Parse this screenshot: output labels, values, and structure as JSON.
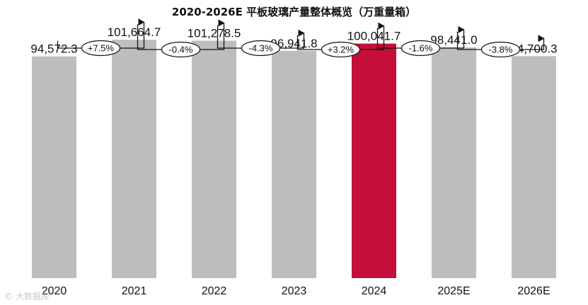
{
  "title": "2020-2026E 平板玻璃产量整体概览（万重量箱）",
  "source_note": "© 大数据库",
  "colors": {
    "bar_default": "#bdbdbd",
    "bar_highlight": "#c40f3b",
    "text": "#111111"
  },
  "chart_data": {
    "type": "bar",
    "title": "2020-2026E 平板玻璃产量整体概览（万重量箱）",
    "xlabel": "",
    "ylabel": "",
    "categories": [
      "2020",
      "2021",
      "2022",
      "2023",
      "2024",
      "2025E",
      "2026E"
    ],
    "values": [
      94572.3,
      101664.7,
      101278.5,
      96941.8,
      100041.7,
      98441.0,
      94700.3
    ],
    "value_labels": [
      "94,572.3",
      "101,664.7",
      "101,278.5",
      "96,941.8",
      "100,041.7",
      "98,441.0",
      "94,700.3"
    ],
    "highlight_category": "2024",
    "growth_labels": [
      "+7.5%",
      "-0.4%",
      "-4.3%",
      "+3.2%",
      "-1.6%",
      "-3.8%"
    ],
    "ylim": [
      0,
      115000
    ],
    "grid": false,
    "legend": "none"
  }
}
